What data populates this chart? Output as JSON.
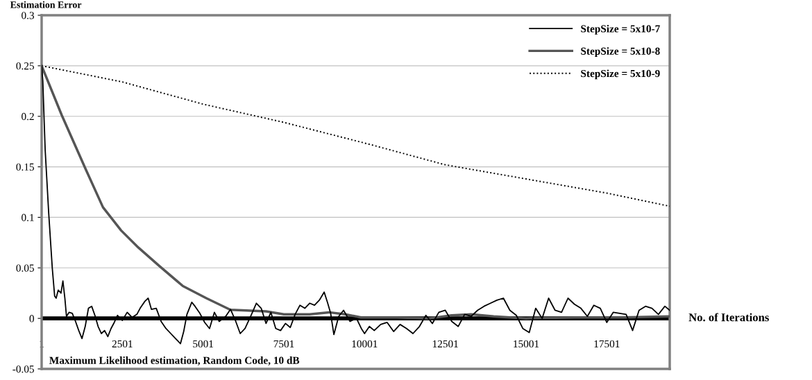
{
  "chart_data": {
    "type": "line",
    "ylabel": "Estimation Error",
    "xlabel": "No. of Iterations",
    "annotations": [
      "Maximum Likelihood estimation, Random Code, 10 dB"
    ],
    "xlim": [
      1,
      19450
    ],
    "xticks": [
      1,
      2501,
      5001,
      7501,
      10001,
      12501,
      15001,
      17501
    ],
    "ylim": [
      -0.05,
      0.3
    ],
    "yticks": [
      -0.05,
      0,
      0.05,
      0.1,
      0.15,
      0.2,
      0.25,
      0.3
    ],
    "grid": "y",
    "legend": "top right",
    "ref_lines": [
      {
        "axis": "y",
        "value": 0,
        "color": "#000000"
      }
    ],
    "series": [
      {
        "name": "StepSize = 5x10-7",
        "color": "#000000",
        "line_style": "solid",
        "x": [
          1,
          37,
          110,
          220,
          330,
          404,
          450,
          515,
          600,
          660,
          720,
          770,
          850,
          950,
          1050,
          1150,
          1250,
          1350,
          1450,
          1550,
          1650,
          1750,
          1850,
          1950,
          2050,
          2150,
          2250,
          2350,
          2500,
          2650,
          2800,
          2950,
          3050,
          3200,
          3300,
          3400,
          3550,
          3700,
          3850,
          4000,
          4150,
          4300,
          4400,
          4500,
          4650,
          4750,
          4900,
          5050,
          5200,
          5350,
          5500,
          5700,
          5850,
          6000,
          6150,
          6300,
          6500,
          6650,
          6800,
          6950,
          7100,
          7250,
          7400,
          7550,
          7700,
          7850,
          8000,
          8150,
          8300,
          8450,
          8600,
          8750,
          8850,
          8950,
          9050,
          9200,
          9350,
          9550,
          9750,
          9900,
          10000,
          10150,
          10300,
          10500,
          10700,
          10900,
          11100,
          11300,
          11500,
          11700,
          11900,
          12100,
          12300,
          12500,
          12700,
          12900,
          13100,
          13300,
          13500,
          13700,
          13900,
          14100,
          14300,
          14500,
          14700,
          14900,
          15100,
          15300,
          15500,
          15700,
          15900,
          16100,
          16300,
          16500,
          16700,
          16900,
          17100,
          17300,
          17500,
          17700,
          17900,
          18100,
          18300,
          18500,
          18700,
          18900,
          19100,
          19300,
          19450
        ],
        "values": [
          0.25,
          0.235,
          0.167,
          0.104,
          0.05,
          0.022,
          0.02,
          0.028,
          0.025,
          0.037,
          0.02,
          0.002,
          0.006,
          0.005,
          -0.003,
          -0.012,
          -0.02,
          -0.008,
          0.01,
          0.012,
          0.003,
          -0.008,
          -0.015,
          -0.012,
          -0.018,
          -0.01,
          -0.004,
          0.003,
          -0.002,
          0.006,
          0.001,
          0.004,
          0.01,
          0.017,
          0.02,
          0.009,
          0.01,
          -0.003,
          -0.01,
          -0.015,
          -0.02,
          -0.025,
          -0.013,
          0.004,
          0.016,
          0.012,
          0.005,
          -0.004,
          -0.01,
          0.006,
          -0.003,
          0.002,
          0.009,
          -0.002,
          -0.015,
          -0.01,
          0.004,
          0.015,
          0.01,
          -0.005,
          0.006,
          -0.01,
          -0.012,
          -0.005,
          -0.009,
          0.004,
          0.013,
          0.01,
          0.015,
          0.013,
          0.018,
          0.026,
          0.016,
          0.005,
          -0.016,
          0.002,
          0.008,
          -0.003,
          0.0,
          -0.01,
          -0.015,
          -0.008,
          -0.012,
          -0.006,
          -0.004,
          -0.013,
          -0.006,
          -0.01,
          -0.015,
          -0.008,
          0.003,
          -0.005,
          0.006,
          0.008,
          -0.003,
          -0.008,
          0.004,
          0.002,
          0.008,
          0.012,
          0.015,
          0.018,
          0.02,
          0.008,
          0.003,
          -0.01,
          -0.014,
          0.01,
          0.0,
          0.02,
          0.008,
          0.006,
          0.02,
          0.014,
          0.01,
          0.002,
          0.013,
          0.01,
          -0.004,
          0.006,
          0.005,
          0.004,
          -0.012,
          0.008,
          0.012,
          0.01,
          0.004,
          0.012,
          0.008
        ]
      },
      {
        "name": "StepSize = 5x10-8",
        "color": "#555555",
        "line_style": "solid",
        "x": [
          1,
          625,
          1360,
          1900,
          2463,
          3000,
          3640,
          4375,
          5100,
          5846,
          6950,
          7500,
          8300,
          8900,
          9400,
          9890,
          11000,
          12000,
          12700,
          13300,
          14000,
          15000,
          16500,
          18000,
          19450
        ],
        "values": [
          0.25,
          0.201,
          0.148,
          0.11,
          0.087,
          0.07,
          0.052,
          0.032,
          0.02,
          0.0085,
          0.007,
          0.004,
          0.004,
          0.006,
          0.004,
          0.001,
          0.001,
          0.0,
          0.003,
          0.004,
          0.002,
          0.0,
          0.001,
          0.001,
          0.002
        ]
      },
      {
        "name": "StepSize = 5x10-9",
        "color": "#000000",
        "line_style": "dotted",
        "x": [
          1,
          2500,
          5001,
          7500,
          10185,
          12500,
          15000,
          17500,
          19450
        ],
        "values": [
          0.25,
          0.234,
          0.212,
          0.194,
          0.172,
          0.152,
          0.138,
          0.124,
          0.111
        ]
      }
    ]
  }
}
